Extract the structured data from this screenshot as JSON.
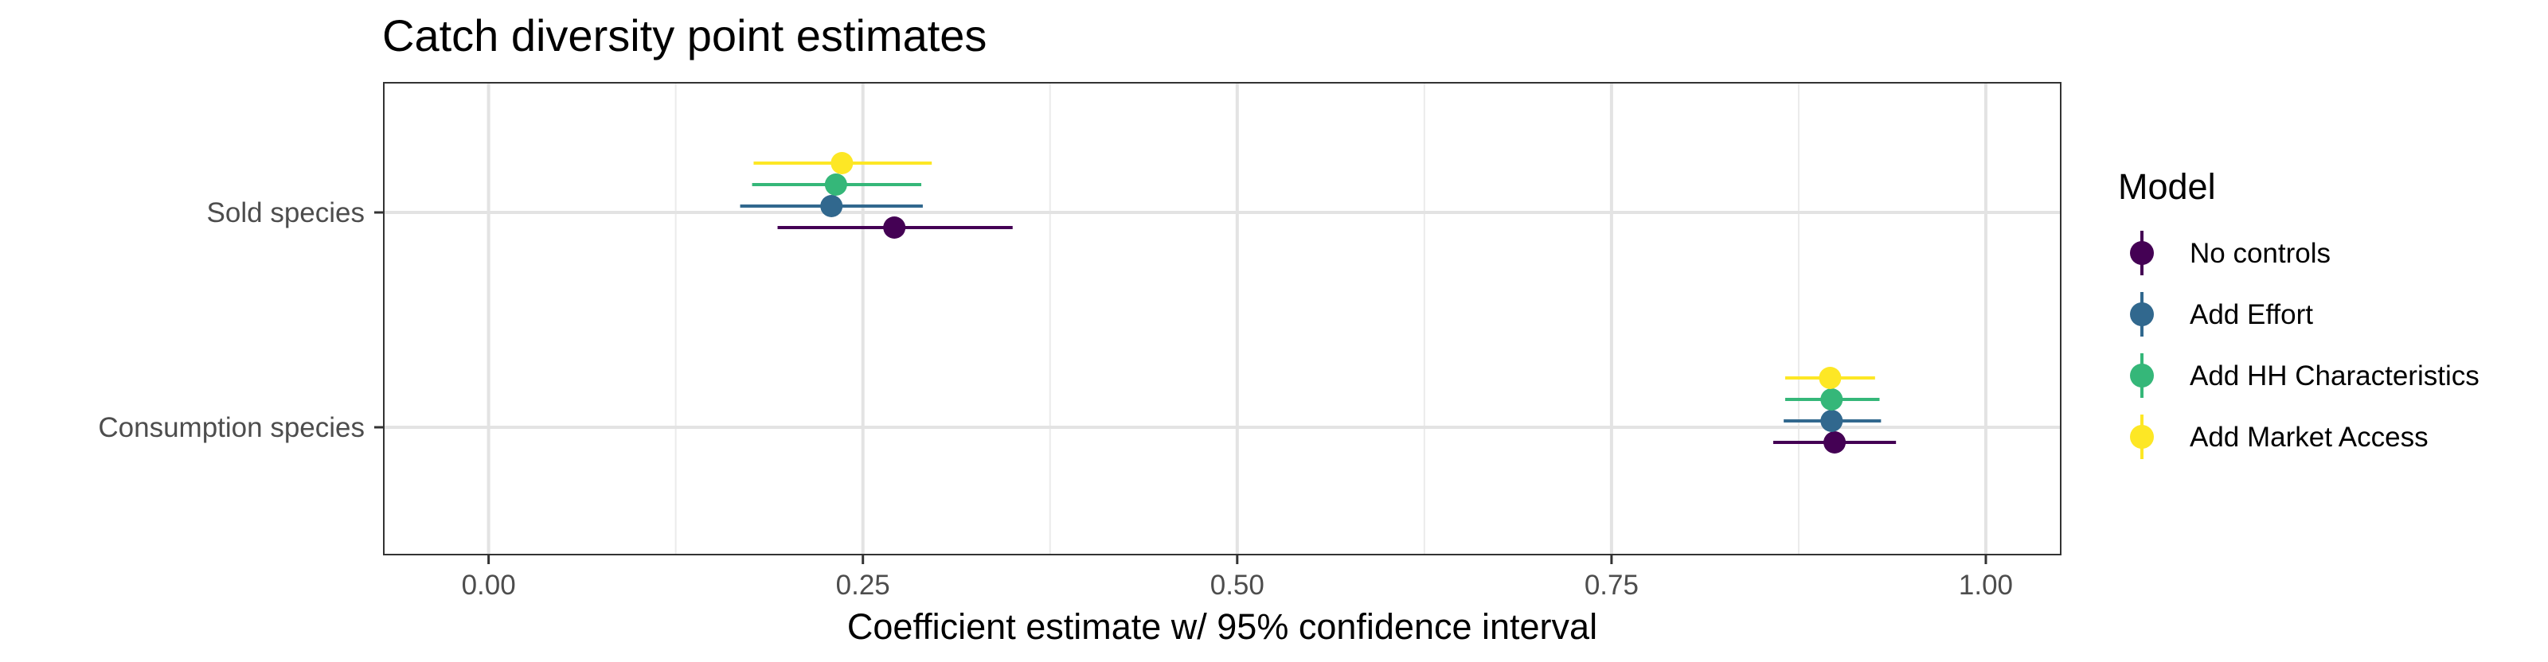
{
  "chart_data": {
    "type": "scatter",
    "title": "Catch diversity point estimates",
    "xlabel": "Coefficient estimate w/ 95% confidence interval",
    "ylabel": "",
    "xlim": [
      -0.07,
      1.05
    ],
    "x_ticks": [
      "0.00",
      "0.25",
      "0.50",
      "0.75",
      "1.00"
    ],
    "x_tick_values": [
      0,
      0.25,
      0.5,
      0.75,
      1.0
    ],
    "categories": [
      "Sold species",
      "Consumption species"
    ],
    "grid": true,
    "legend_position": "right",
    "legend_title": "Model",
    "series": [
      {
        "name": "No controls",
        "color": "#440154",
        "values": [
          {
            "category": "Sold species",
            "estimate": 0.271,
            "ci_low": 0.193,
            "ci_high": 0.35
          },
          {
            "category": "Consumption species",
            "estimate": 0.899,
            "ci_low": 0.858,
            "ci_high": 0.94
          }
        ]
      },
      {
        "name": "Add Effort",
        "color": "#31688E",
        "values": [
          {
            "category": "Sold species",
            "estimate": 0.229,
            "ci_low": 0.168,
            "ci_high": 0.29
          },
          {
            "category": "Consumption species",
            "estimate": 0.897,
            "ci_low": 0.865,
            "ci_high": 0.93
          }
        ]
      },
      {
        "name": "Add HH Characteristics",
        "color": "#35B779",
        "values": [
          {
            "category": "Sold species",
            "estimate": 0.232,
            "ci_low": 0.176,
            "ci_high": 0.289
          },
          {
            "category": "Consumption species",
            "estimate": 0.897,
            "ci_low": 0.866,
            "ci_high": 0.929
          }
        ]
      },
      {
        "name": "Add Market Access",
        "color": "#FDE725",
        "values": [
          {
            "category": "Sold species",
            "estimate": 0.236,
            "ci_low": 0.177,
            "ci_high": 0.296
          },
          {
            "category": "Consumption species",
            "estimate": 0.896,
            "ci_low": 0.866,
            "ci_high": 0.926
          }
        ]
      }
    ]
  }
}
